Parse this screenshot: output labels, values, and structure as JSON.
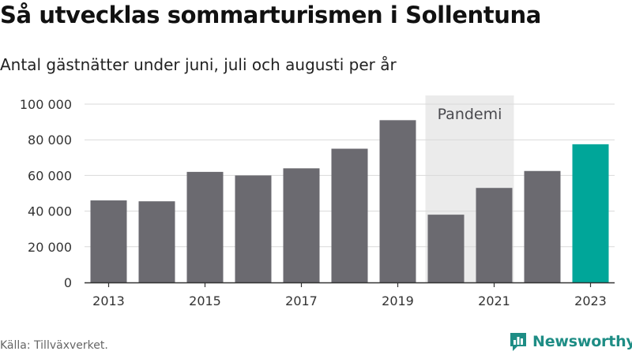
{
  "title": "Så utvecklas sommarturismen i Sollentuna",
  "subtitle": "Antal gästnätter under juni, juli och augusti per år",
  "source": "Källa: Tillväxverket.",
  "logo_text": "Newsworthy",
  "colors": {
    "bar": "#6b6a70",
    "highlight": "#00a699",
    "shade": "#ebebeb",
    "grid": "#d9d9d9",
    "logo": "#1e8d85"
  },
  "chart_data": {
    "type": "bar",
    "categories": [
      "2013",
      "2014",
      "2015",
      "2016",
      "2017",
      "2018",
      "2019",
      "2020",
      "2021",
      "2022",
      "2023"
    ],
    "values": [
      46000,
      45500,
      62000,
      60000,
      64000,
      75000,
      91000,
      38000,
      53000,
      62500,
      77500
    ],
    "highlight_category": "2023",
    "x_tick_labels": [
      "2013",
      "2015",
      "2017",
      "2019",
      "2021",
      "2023"
    ],
    "y_ticks": [
      0,
      20000,
      40000,
      60000,
      80000,
      100000
    ],
    "y_tick_labels": [
      "0",
      "20 000",
      "40 000",
      "60 000",
      "80 000",
      "100 000"
    ],
    "ylim": [
      0,
      100000
    ],
    "grid": true,
    "annotation": {
      "label": "Pandemi",
      "categories": [
        "2020",
        "2021"
      ]
    }
  }
}
